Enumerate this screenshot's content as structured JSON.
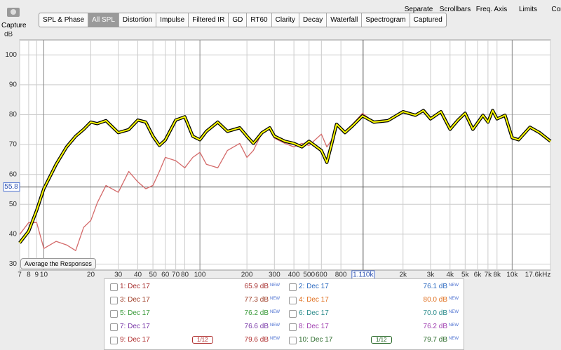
{
  "toolbar": {
    "capture": "Capture",
    "tabs": [
      "SPL & Phase",
      "All SPL",
      "Distortion",
      "Impulse",
      "Filtered IR",
      "GD",
      "RT60",
      "Clarity",
      "Decay",
      "Waterfall",
      "Spectrogram",
      "Captured"
    ],
    "tools": [
      "Separate",
      "Scrollbars",
      "Freq. Axis",
      "Limits",
      "Controls"
    ]
  },
  "chart_data": {
    "type": "line",
    "y_axis_label": "dB",
    "log_x": true,
    "grid": true,
    "x": [
      7,
      8,
      9,
      10,
      12,
      14,
      16,
      18,
      20,
      22,
      25,
      30,
      35,
      40,
      45,
      50,
      55,
      60,
      70,
      80,
      90,
      100,
      110,
      130,
      150,
      180,
      200,
      220,
      250,
      280,
      300,
      350,
      400,
      450,
      500,
      600,
      650,
      700,
      750,
      850,
      950,
      1100,
      1300,
      1600,
      2000,
      2400,
      2700,
      3000,
      3500,
      4000,
      4500,
      5000,
      5600,
      6500,
      7000,
      7500,
      8000,
      9000,
      10000,
      11000,
      13000,
      15000,
      17600
    ],
    "xlim": [
      7,
      17600
    ],
    "ylim": [
      28,
      105
    ],
    "xticks": [
      7,
      8,
      9,
      10,
      20,
      30,
      40,
      50,
      60,
      70,
      80,
      100,
      200,
      300,
      400,
      500,
      600,
      800,
      {
        "value": 2000,
        "label": "2k"
      },
      {
        "value": 3000,
        "label": "3k"
      },
      {
        "value": 4000,
        "label": "4k"
      },
      {
        "value": 5000,
        "label": "5k"
      },
      {
        "value": 6000,
        "label": "6k"
      },
      {
        "value": 7000,
        "label": "7k"
      },
      {
        "value": 8000,
        "label": "8k"
      },
      {
        "value": 10000,
        "label": "10k"
      },
      {
        "value": 17600,
        "label": "17.6kHz"
      }
    ],
    "yticks": [
      30,
      40,
      50,
      60,
      70,
      80,
      90,
      100
    ],
    "cursor": {
      "x": {
        "value": 1110,
        "label": "1.110k"
      },
      "y": 55.8
    },
    "series": [
      {
        "name": "9: Dec 17",
        "color": "#d46a6a",
        "legend_color": "#b03030",
        "level": "79.6 dB",
        "checked": true,
        "smoothing": "1/12",
        "values": [
          39.9,
          43.9,
          43.9,
          35.2,
          37.6,
          36.4,
          34.5,
          42.3,
          44.6,
          50.5,
          56.3,
          54,
          61,
          57.5,
          55.2,
          56.3,
          61,
          65.7,
          64.6,
          62.2,
          65.7,
          67.4,
          63.4,
          62.2,
          68,
          70.4,
          65.7,
          68,
          74,
          75.1,
          72.1,
          70.4,
          69.2,
          70.4,
          69.7,
          73.5,
          69.2,
          71.6,
          76.3,
          74.4,
          76.8,
          80.5,
          77.5,
          78,
          81,
          79.8,
          81.4,
          78.6,
          81,
          75.1,
          78.2,
          80.5,
          75.1,
          79.8,
          77.5,
          81.4,
          78.6,
          79.8,
          72.3,
          71.6,
          75.8,
          74,
          71.1
        ]
      },
      {
        "name": "10: Dec 17",
        "color": "#ffff00",
        "legend_color": "#2a6a2a",
        "level": "79.7 dB",
        "checked": true,
        "smoothing": "1/12",
        "values": [
          37.1,
          41,
          48,
          55.2,
          63.4,
          69.2,
          72.8,
          75.1,
          77.5,
          77,
          78,
          74,
          75,
          78.2,
          77.5,
          72.8,
          69.7,
          71.5,
          78.2,
          79.3,
          72.8,
          71.6,
          74.4,
          77.5,
          74.4,
          75.6,
          72.8,
          70.4,
          74,
          75.6,
          72.8,
          71.1,
          70.4,
          69.2,
          71.1,
          68,
          64,
          70.4,
          76.8,
          74,
          76.3,
          79.6,
          77.5,
          78,
          81,
          79.8,
          81.4,
          78.6,
          81,
          75.1,
          78.2,
          80.5,
          75.1,
          79.8,
          77.5,
          81.4,
          78.6,
          79.8,
          72.3,
          71.6,
          75.8,
          74,
          71.1
        ]
      }
    ]
  },
  "button": "Average the Responses",
  "legend": {
    "new_badge": "NEW",
    "entries": [
      {
        "name": "1: Dec 17",
        "level": "65.9 dB",
        "color": "#a83232",
        "checked": false
      },
      {
        "name": "2: Dec 17",
        "level": "76.1 dB",
        "color": "#2e6bc0",
        "checked": false
      },
      {
        "name": "3: Dec 17",
        "level": "77.3 dB",
        "color": "#a0402a",
        "checked": false
      },
      {
        "name": "4: Dec 17",
        "level": "80.0 dB",
        "color": "#e07020",
        "checked": false
      },
      {
        "name": "5: Dec 17",
        "level": "76.2 dB",
        "color": "#3a9a3a",
        "checked": false
      },
      {
        "name": "6: Dec 17",
        "level": "70.0 dB",
        "color": "#2a8a8a",
        "checked": false
      },
      {
        "name": "7: Dec 17",
        "level": "76.6 dB",
        "color": "#7a3aa8",
        "checked": false
      },
      {
        "name": "8: Dec 17",
        "level": "76.2 dB",
        "color": "#a040b0",
        "checked": false
      }
    ]
  }
}
